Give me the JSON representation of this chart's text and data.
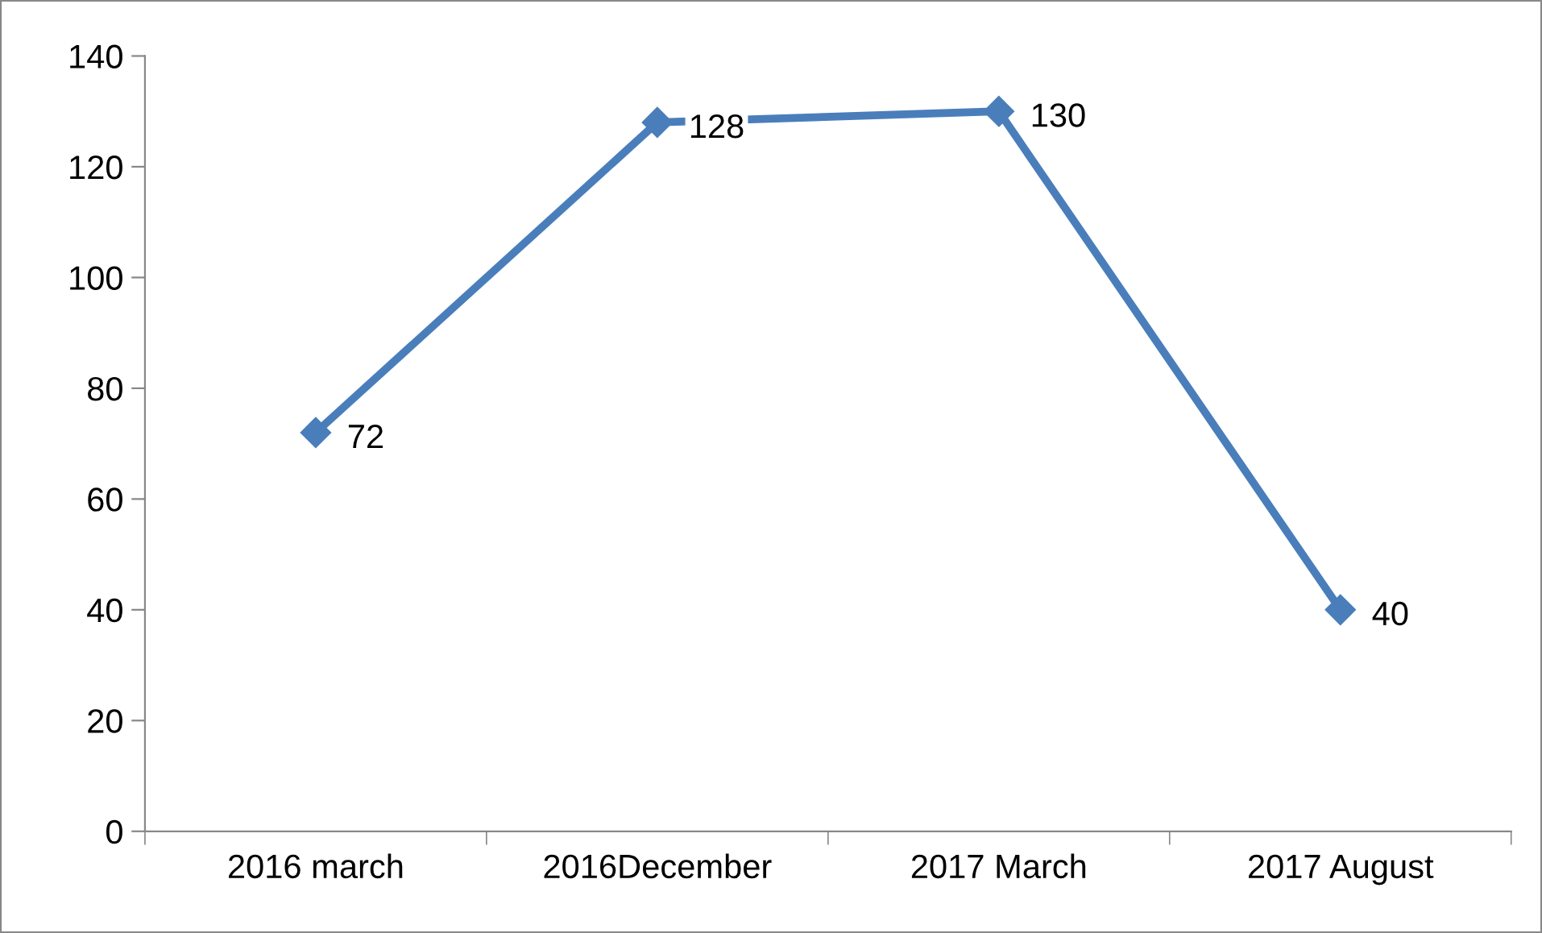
{
  "chart_data": {
    "type": "line",
    "categories": [
      "2016 march",
      "2016December",
      "2017 March",
      "2017 August"
    ],
    "series": [
      {
        "color": "#4a7ebb",
        "values": [
          72,
          128,
          130,
          40
        ]
      }
    ],
    "ylim": [
      0,
      140
    ],
    "yticks": [
      0,
      20,
      40,
      60,
      80,
      100,
      120,
      140
    ],
    "data_labels": true,
    "marker": "diamond",
    "line_style": "solid",
    "grid": false
  }
}
